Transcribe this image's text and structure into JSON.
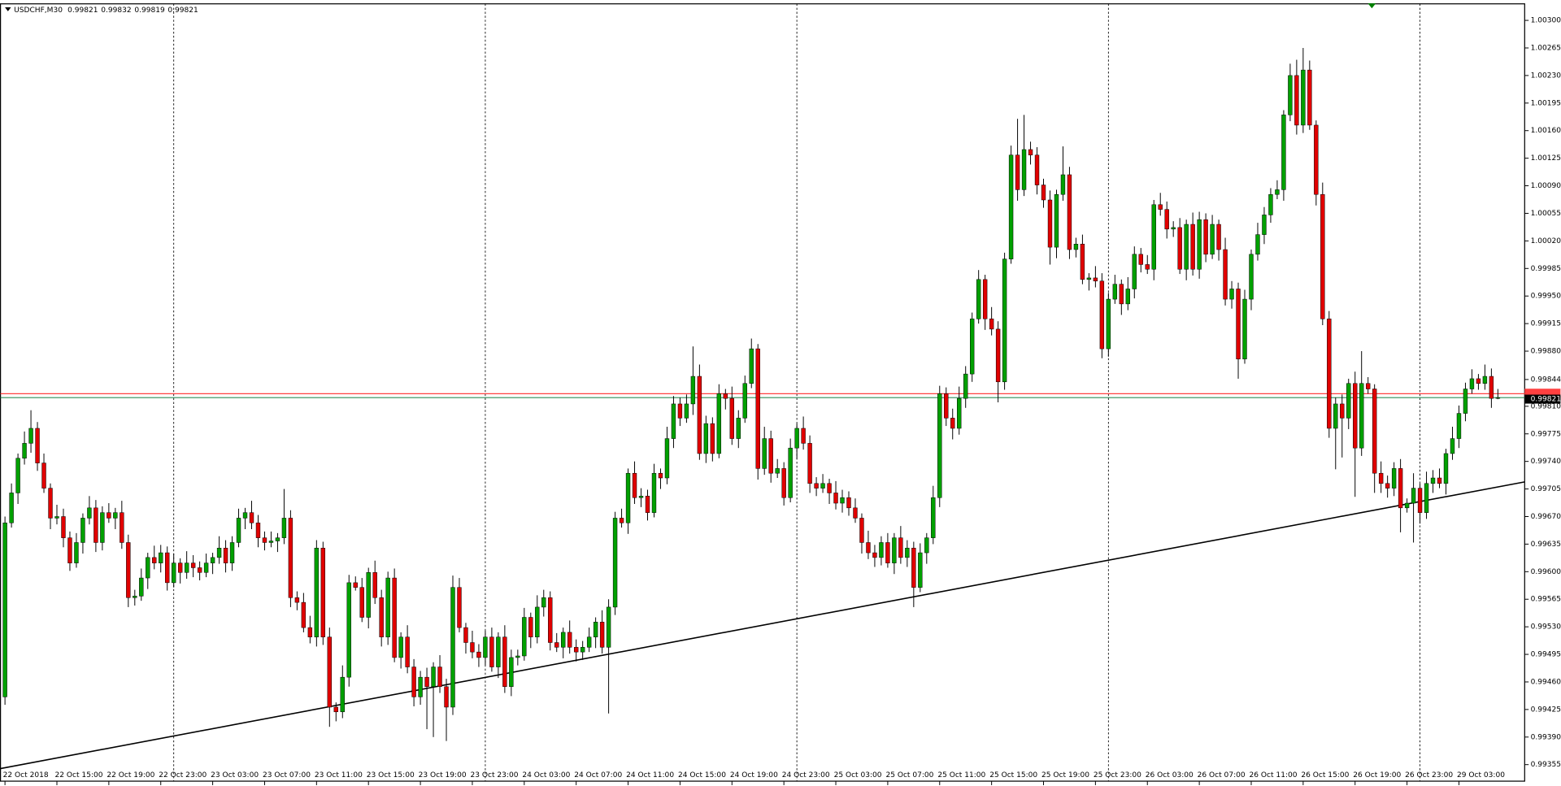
{
  "chart_data": {
    "type": "candlestick",
    "title": "USDCHF,M30",
    "up_color": "#00a000",
    "down_color": "#e00000",
    "bid": 0.99821,
    "ask": 0.99826,
    "bid_color": "#2e8b57",
    "ask_color": "#ff4040",
    "trendline": [
      0.9935,
      0.99714
    ],
    "ylim": [
      0.99334,
      1.00321
    ],
    "yticks": [
      {
        "value": 1.003,
        "label": "1.00300"
      },
      1.00265,
      {
        "value": 1.0023,
        "label": "1.00230"
      },
      1.00195,
      {
        "value": 1.0016,
        "label": "1.00160"
      },
      1.00125,
      {
        "value": 1.0009,
        "label": "1.00090"
      },
      1.00055,
      {
        "value": 1.0002,
        "label": "1.00020"
      },
      0.99985,
      {
        "value": 0.9995,
        "label": "0.99950"
      },
      0.99915,
      {
        "value": 0.9988,
        "label": "0.99880"
      },
      0.99844,
      {
        "value": 0.9981,
        "label": "0.99810"
      },
      0.99775,
      {
        "value": 0.9974,
        "label": "0.99740"
      },
      0.99705,
      {
        "value": 0.9967,
        "label": "0.99670"
      },
      0.99635,
      {
        "value": 0.996,
        "label": "0.99600"
      },
      0.99565,
      {
        "value": 0.9953,
        "label": "0.99530"
      },
      0.99495,
      {
        "value": 0.9946,
        "label": "0.99460"
      },
      0.99425,
      {
        "value": 0.9939,
        "label": "0.99390"
      },
      0.99355
    ],
    "categories": [
      "22 Oct 2018",
      null,
      null,
      null,
      null,
      null,
      null,
      null,
      "22 Oct 15:00",
      null,
      null,
      null,
      null,
      null,
      null,
      null,
      "22 Oct 19:00",
      null,
      null,
      null,
      null,
      null,
      null,
      null,
      "22 Oct 23:00",
      null,
      null,
      null,
      null,
      null,
      null,
      null,
      "23 Oct 03:00",
      null,
      null,
      null,
      null,
      null,
      null,
      null,
      "23 Oct 07:00",
      null,
      null,
      null,
      null,
      null,
      null,
      null,
      "23 Oct 11:00",
      null,
      null,
      null,
      null,
      null,
      null,
      null,
      "23 Oct 15:00",
      null,
      null,
      null,
      null,
      null,
      null,
      null,
      "23 Oct 19:00",
      null,
      null,
      null,
      null,
      null,
      null,
      null,
      "23 Oct 23:00",
      null,
      null,
      null,
      null,
      null,
      null,
      null,
      "24 Oct 03:00",
      null,
      null,
      null,
      null,
      null,
      null,
      null,
      "24 Oct 07:00",
      null,
      null,
      null,
      null,
      null,
      null,
      null,
      "24 Oct 11:00",
      null,
      null,
      null,
      null,
      null,
      null,
      null,
      "24 Oct 15:00",
      null,
      null,
      null,
      null,
      null,
      null,
      null,
      "24 Oct 19:00",
      null,
      null,
      null,
      null,
      null,
      null,
      null,
      "24 Oct 23:00",
      null,
      null,
      null,
      null,
      null,
      null,
      null,
      "25 Oct 03:00",
      null,
      null,
      null,
      null,
      null,
      null,
      null,
      "25 Oct 07:00",
      null,
      null,
      null,
      null,
      null,
      null,
      null,
      "25 Oct 11:00",
      null,
      null,
      null,
      null,
      null,
      null,
      null,
      "25 Oct 15:00",
      null,
      null,
      null,
      null,
      null,
      null,
      null,
      "25 Oct 19:00",
      null,
      null,
      null,
      null,
      null,
      null,
      null,
      "25 Oct 23:00",
      null,
      null,
      null,
      null,
      null,
      null,
      null,
      "26 Oct 03:00",
      null,
      null,
      null,
      null,
      null,
      null,
      null,
      "26 Oct 07:00",
      null,
      null,
      null,
      null,
      null,
      null,
      null,
      "26 Oct 11:00",
      null,
      null,
      null,
      null,
      null,
      null,
      null,
      "26 Oct 15:00",
      null,
      null,
      null,
      null,
      null,
      null,
      null,
      "26 Oct 19:00",
      null,
      null,
      null,
      null,
      null,
      null,
      null,
      "26 Oct 23:00",
      null,
      null,
      null,
      null,
      null,
      null,
      null,
      "29 Oct 03:00",
      null,
      null,
      null,
      null,
      null,
      null
    ],
    "open": [
      0.99441,
      0.99662,
      0.997,
      0.99744,
      0.99763,
      0.99782,
      0.99738,
      0.99706,
      0.99668,
      0.9967,
      0.99643,
      0.99611,
      0.99637,
      0.99668,
      0.99681,
      0.99637,
      0.99675,
      0.99668,
      0.99675,
      0.99637,
      0.99567,
      0.99569,
      0.99592,
      0.99618,
      0.99611,
      0.99624,
      0.99586,
      0.99611,
      0.99599,
      0.99611,
      0.99605,
      0.99599,
      0.99611,
      0.99618,
      0.9963,
      0.99611,
      0.99637,
      0.99668,
      0.99675,
      0.99662,
      0.99643,
      0.99637,
      0.99639,
      0.99643,
      0.99668,
      0.99567,
      0.99561,
      0.99529,
      0.99517,
      0.9963,
      0.99517,
      0.99428,
      0.99422,
      0.99466,
      0.99586,
      0.9958,
      0.99542,
      0.99599,
      0.99567,
      0.99517,
      0.99592,
      0.99491,
      0.99517,
      0.99479,
      0.99441,
      0.99466,
      0.99454,
      0.99479,
      0.99454,
      0.99428,
      0.9958,
      0.99529,
      0.9951,
      0.99498,
      0.99491,
      0.99517,
      0.99479,
      0.99517,
      0.99454,
      0.99491,
      0.99493,
      0.99542,
      0.99517,
      0.99555,
      0.99567,
      0.9951,
      0.99504,
      0.99523,
      0.99504,
      0.99498,
      0.99504,
      0.99517,
      0.99536,
      0.99504,
      0.99555,
      0.99668,
      0.99662,
      0.99725,
      0.99694,
      0.99696,
      0.99675,
      0.99725,
      0.99719,
      0.99769,
      0.99813,
      0.99795,
      0.99813,
      0.99848,
      0.9975,
      0.99788,
      0.9975,
      0.99826,
      0.9982,
      0.99769,
      0.99795,
      0.99839,
      0.99883,
      0.99731,
      0.99769,
      0.99725,
      0.99731,
      0.99694,
      0.99757,
      0.99782,
      0.99763,
      0.99712,
      0.99706,
      0.99712,
      0.997,
      0.99687,
      0.99694,
      0.99681,
      0.99668,
      0.99637,
      0.99624,
      0.99618,
      0.99637,
      0.99611,
      0.99643,
      0.99618,
      0.9963,
      0.9958,
      0.99624,
      0.99643,
      0.99694,
      0.99826,
      0.99795,
      0.99782,
      0.9982,
      0.99851,
      0.99921,
      0.99971,
      0.99921,
      0.99908,
      0.99841,
      0.99997,
      1.00129,
      1.00085,
      1.00136,
      1.00129,
      1.00091,
      1.00072,
      1.00012,
      1.00079,
      1.00104,
      1.00009,
      1.00016,
      0.99971,
      0.99973,
      0.99969,
      0.99883,
      0.99946,
      0.99965,
      0.9994,
      0.99959,
      1.00003,
      0.9999,
      0.99984,
      1.00066,
      1.0006,
      1.00035,
      1.00037,
      0.99984,
      1.00041,
      0.99984,
      1.00047,
      1.00003,
      1.00041,
      1.00009,
      0.99946,
      0.99959,
      0.9987,
      0.99946,
      1.00003,
      1.00028,
      1.00053,
      1.00079,
      1.00085,
      1.0018,
      1.0023,
      1.00167,
      1.00237,
      1.00167,
      1.00079,
      0.99921,
      0.99782,
      0.99813,
      0.99795,
      0.99839,
      0.99757,
      0.99839,
      0.99832,
      0.99725,
      0.99712,
      0.99706,
      0.99731,
      0.99681,
      0.99687,
      0.99706,
      0.99675,
      0.99712,
      0.99719,
      0.99712,
      0.9975,
      0.99769,
      0.99801,
      0.99832,
      0.99845,
      0.99839,
      0.99848,
      0.99821
    ],
    "high": [
      0.9967,
      0.99712,
      0.9975,
      0.99778,
      0.99805,
      0.9979,
      0.9975,
      0.99712,
      0.99685,
      0.9968,
      0.99651,
      0.99649,
      0.99674,
      0.99696,
      0.99691,
      0.99683,
      0.99687,
      0.99681,
      0.9969,
      0.99647,
      0.99577,
      0.99604,
      0.99624,
      0.99633,
      0.99634,
      0.99632,
      0.99623,
      0.99617,
      0.99626,
      0.99621,
      0.99613,
      0.99623,
      0.99624,
      0.99645,
      0.9964,
      0.99645,
      0.9968,
      0.99681,
      0.9969,
      0.99672,
      0.99651,
      0.99651,
      0.99649,
      0.99705,
      0.99678,
      0.99575,
      0.99573,
      0.99544,
      0.9964,
      0.99638,
      0.99529,
      0.99434,
      0.99481,
      0.99596,
      0.99594,
      0.99592,
      0.99605,
      0.99614,
      0.99577,
      0.996,
      0.99604,
      0.99523,
      0.99532,
      0.99489,
      0.99474,
      0.99478,
      0.99485,
      0.99494,
      0.99464,
      0.99595,
      0.99592,
      0.99535,
      0.99525,
      0.99508,
      0.99525,
      0.99529,
      0.99523,
      0.99532,
      0.99501,
      0.99501,
      0.99554,
      0.99548,
      0.9957,
      0.99577,
      0.99575,
      0.99522,
      0.99529,
      0.99538,
      0.99514,
      0.99512,
      0.99529,
      0.99542,
      0.99551,
      0.99565,
      0.99676,
      0.9968,
      0.99731,
      0.9974,
      0.99706,
      0.99704,
      0.99737,
      0.99731,
      0.99784,
      0.99823,
      0.99821,
      0.99825,
      0.99886,
      0.99863,
      0.99798,
      0.99796,
      0.99838,
      0.99832,
      0.99835,
      0.99805,
      0.99849,
      0.99896,
      0.99889,
      0.99784,
      0.99779,
      0.99743,
      0.99739,
      0.99769,
      0.99788,
      0.99797,
      0.99773,
      0.9972,
      0.99724,
      0.99718,
      0.99715,
      0.99704,
      0.99702,
      0.99693,
      0.99674,
      0.99652,
      0.99634,
      0.99645,
      0.99649,
      0.99649,
      0.99658,
      0.9964,
      0.99638,
      0.99636,
      0.99649,
      0.99709,
      0.99836,
      0.99834,
      0.99807,
      0.99835,
      0.99861,
      0.99929,
      0.99983,
      0.99977,
      0.99936,
      0.99918,
      1.00005,
      1.00141,
      1.00175,
      1.0018,
      1.00146,
      1.00139,
      1.00099,
      1.00084,
      1.00085,
      1.0014,
      1.00114,
      1.00024,
      1.00028,
      0.99979,
      0.99988,
      0.99979,
      0.99954,
      0.99977,
      0.99971,
      0.99974,
      1.00013,
      1.00011,
      1.00002,
      1.00072,
      1.00081,
      1.0007,
      1.00045,
      1.00049,
      1.00047,
      1.00056,
      1.00057,
      1.00055,
      1.00053,
      1.00047,
      1.00024,
      0.99969,
      0.99967,
      0.99958,
      1.00009,
      1.00043,
      1.00063,
      1.00087,
      1.00097,
      1.00186,
      1.00245,
      1.0025,
      1.00265,
      1.00249,
      1.00173,
      1.00094,
      0.99931,
      0.99821,
      0.99825,
      0.99845,
      0.99854,
      0.9988,
      0.99847,
      0.99838,
      0.9974,
      0.99722,
      0.99739,
      0.99743,
      0.99693,
      0.99725,
      0.99712,
      0.99727,
      0.99729,
      0.99731,
      0.99756,
      0.99784,
      0.99811,
      0.9984,
      0.99857,
      0.99851,
      0.99863,
      0.99858,
      0.99832
    ],
    "low": [
      0.99431,
      0.99656,
      0.99686,
      0.99736,
      0.99751,
      0.99728,
      0.997,
      0.99654,
      0.9966,
      0.99631,
      0.99601,
      0.99605,
      0.99623,
      0.9966,
      0.99625,
      0.99627,
      0.99662,
      0.99654,
      0.99629,
      0.99555,
      0.99557,
      0.99563,
      0.99578,
      0.99603,
      0.99599,
      0.99576,
      0.9958,
      0.99585,
      0.99591,
      0.99593,
      0.99589,
      0.99593,
      0.99597,
      0.9961,
      0.99599,
      0.99601,
      0.99631,
      0.99654,
      0.99654,
      0.99631,
      0.99627,
      0.99631,
      0.99625,
      0.99635,
      0.99555,
      0.99551,
      0.99523,
      0.99509,
      0.99505,
      0.99507,
      0.99403,
      0.9941,
      0.99414,
      0.99454,
      0.99576,
      0.99536,
      0.99528,
      0.99559,
      0.99505,
      0.99507,
      0.99485,
      0.99477,
      0.99471,
      0.99429,
      0.99431,
      0.994,
      0.9939,
      0.99446,
      0.99385,
      0.99418,
      0.99523,
      0.99496,
      0.9949,
      0.99479,
      0.99481,
      0.99473,
      0.99465,
      0.99446,
      0.99442,
      0.99481,
      0.99487,
      0.99503,
      0.99509,
      0.99543,
      0.995,
      0.99498,
      0.9949,
      0.99496,
      0.99486,
      0.99488,
      0.99498,
      0.99503,
      0.99496,
      0.9942,
      0.99545,
      0.99656,
      0.99648,
      0.99686,
      0.99682,
      0.99665,
      0.99669,
      0.99705,
      0.99711,
      0.99757,
      0.99785,
      0.99789,
      0.99799,
      0.99742,
      0.99738,
      0.9974,
      0.99744,
      0.99806,
      0.99761,
      0.99757,
      0.99789,
      0.99833,
      0.99717,
      0.99723,
      0.99713,
      0.99719,
      0.99684,
      0.99688,
      0.99743,
      0.99755,
      0.997,
      0.99696,
      0.997,
      0.99686,
      0.99679,
      0.99675,
      0.99671,
      0.99662,
      0.99623,
      0.99616,
      0.99606,
      0.99608,
      0.99605,
      0.99597,
      0.9961,
      0.99606,
      0.99555,
      0.99574,
      0.9961,
      0.99635,
      0.99682,
      0.99785,
      0.99768,
      0.99774,
      0.99808,
      0.99841,
      0.99915,
      0.99907,
      0.999,
      0.99815,
      0.99831,
      0.99991,
      1.00071,
      1.00077,
      1.00117,
      1.00079,
      1.00062,
      0.9999,
      0.99998,
      1.00071,
      0.99997,
      0.99999,
      0.99965,
      0.99957,
      0.99961,
      0.99871,
      0.99873,
      0.9994,
      0.99926,
      0.99932,
      0.99947,
      0.9998,
      0.99978,
      0.9997,
      1.00052,
      1.00023,
      1.00025,
      0.99978,
      0.9997,
      0.99976,
      0.99972,
      0.99993,
      0.99997,
      0.99995,
      0.99938,
      0.99934,
      0.99845,
      0.99864,
      0.99932,
      0.99995,
      1.00016,
      1.00043,
      1.00073,
      1.00071,
      1.00172,
      1.00155,
      1.00157,
      1.00161,
      1.00065,
      0.99913,
      0.9977,
      0.9973,
      0.99745,
      0.99781,
      0.99695,
      0.99747,
      0.99826,
      0.997,
      0.997,
      0.99694,
      0.99696,
      0.9965,
      0.99675,
      0.99637,
      0.99661,
      0.99667,
      0.997,
      0.99706,
      0.99698,
      0.99742,
      0.99757,
      0.99791,
      0.99826,
      0.99831,
      0.99831,
      0.99808,
      0.99819
    ],
    "close": [
      0.99662,
      0.997,
      0.99744,
      0.99763,
      0.99782,
      0.99738,
      0.99706,
      0.99668,
      0.9967,
      0.99643,
      0.99611,
      0.99637,
      0.99668,
      0.99681,
      0.99637,
      0.99675,
      0.99668,
      0.99675,
      0.99637,
      0.99567,
      0.99569,
      0.99592,
      0.99618,
      0.99611,
      0.99624,
      0.99586,
      0.99611,
      0.99599,
      0.99611,
      0.99605,
      0.99599,
      0.99611,
      0.99618,
      0.9963,
      0.99611,
      0.99637,
      0.99668,
      0.99675,
      0.99662,
      0.99643,
      0.99637,
      0.99639,
      0.99643,
      0.99668,
      0.99567,
      0.99561,
      0.99529,
      0.99517,
      0.9963,
      0.99517,
      0.99428,
      0.99422,
      0.99466,
      0.99586,
      0.9958,
      0.99542,
      0.99599,
      0.99567,
      0.99517,
      0.99592,
      0.99491,
      0.99517,
      0.99479,
      0.99441,
      0.99466,
      0.99454,
      0.99479,
      0.99454,
      0.99428,
      0.9958,
      0.99529,
      0.9951,
      0.99498,
      0.99491,
      0.99517,
      0.99479,
      0.99517,
      0.99454,
      0.99491,
      0.99493,
      0.99542,
      0.99517,
      0.99555,
      0.99567,
      0.9951,
      0.99504,
      0.99523,
      0.99504,
      0.99498,
      0.99504,
      0.99517,
      0.99536,
      0.99504,
      0.99555,
      0.99668,
      0.99662,
      0.99725,
      0.99694,
      0.99696,
      0.99675,
      0.99725,
      0.99719,
      0.99769,
      0.99813,
      0.99795,
      0.99813,
      0.99848,
      0.9975,
      0.99788,
      0.9975,
      0.99826,
      0.9982,
      0.99769,
      0.99795,
      0.99839,
      0.99883,
      0.99731,
      0.99769,
      0.99725,
      0.99731,
      0.99694,
      0.99757,
      0.99782,
      0.99763,
      0.99712,
      0.99706,
      0.99712,
      0.997,
      0.99687,
      0.99694,
      0.99681,
      0.99668,
      0.99637,
      0.99624,
      0.99618,
      0.99637,
      0.99611,
      0.99643,
      0.99618,
      0.9963,
      0.9958,
      0.99624,
      0.99643,
      0.99694,
      0.99826,
      0.99795,
      0.99782,
      0.9982,
      0.99851,
      0.99921,
      0.99971,
      0.99921,
      0.99908,
      0.99841,
      0.99997,
      1.00129,
      1.00085,
      1.00136,
      1.00129,
      1.00091,
      1.00072,
      1.00012,
      1.00079,
      1.00104,
      1.00009,
      1.00016,
      0.99971,
      0.99973,
      0.99969,
      0.99883,
      0.99946,
      0.99965,
      0.9994,
      0.99959,
      1.00003,
      0.9999,
      0.99984,
      1.00066,
      1.0006,
      1.00035,
      1.00037,
      0.99984,
      1.00041,
      0.99984,
      1.00047,
      1.00003,
      1.00041,
      1.00009,
      0.99946,
      0.99959,
      0.9987,
      0.99946,
      1.00003,
      1.00028,
      1.00053,
      1.00079,
      1.00085,
      1.0018,
      1.0023,
      1.00167,
      1.00237,
      1.00167,
      1.00079,
      0.99921,
      0.99782,
      0.99813,
      0.99795,
      0.99839,
      0.99757,
      0.99839,
      0.99832,
      0.99725,
      0.99712,
      0.99706,
      0.99731,
      0.99681,
      0.99687,
      0.99706,
      0.99675,
      0.99712,
      0.99719,
      0.99712,
      0.9975,
      0.99769,
      0.99801,
      0.99832,
      0.99845,
      0.99839,
      0.99848,
      0.9982,
      0.99821
    ]
  }
}
